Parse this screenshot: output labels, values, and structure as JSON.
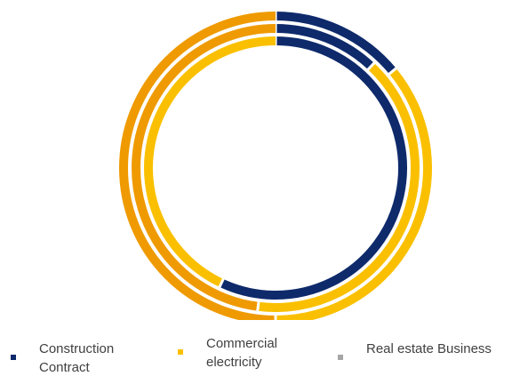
{
  "chart_data": {
    "type": "pie",
    "subtype": "multi-ring donut",
    "legend_position": "bottom",
    "categories": [
      "Construction Contract",
      "Commercial electricity",
      "Real estate Business"
    ],
    "colors": [
      "#0e2a6b",
      "#fac000",
      "#a6a6a6"
    ],
    "series": [
      {
        "values": [
          0.14,
          0.36,
          0.5
        ]
      },
      {
        "values": [
          0.12,
          0.4,
          0.48
        ]
      },
      {
        "values": [
          0.57,
          0.43,
          0.0
        ]
      }
    ],
    "ring_colors": [
      [
        "#0e2a6b",
        "#fac000",
        "#ef9a00"
      ],
      [
        "#0e2a6b",
        "#fac000",
        "#ef9a00"
      ],
      [
        "#0e2a6b",
        "#fac000",
        "#a6a6a6"
      ]
    ]
  },
  "legend": {
    "items": [
      {
        "label": "Construction Contract",
        "color": "#0e2a6b"
      },
      {
        "label": "Commercial electricity",
        "color": "#fac000"
      },
      {
        "label": "Real estate Business",
        "color": "#a6a6a6"
      }
    ]
  }
}
